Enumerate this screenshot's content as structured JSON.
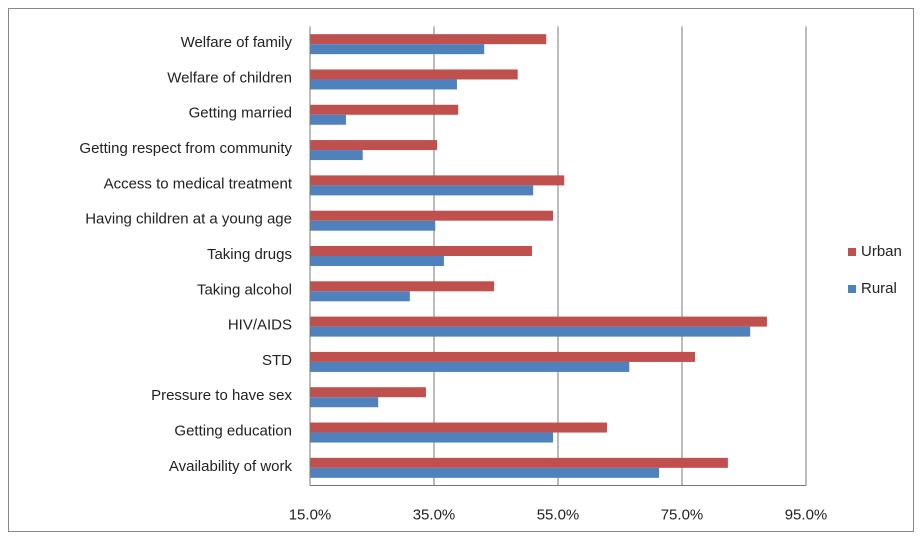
{
  "chart_data": {
    "type": "bar",
    "orientation": "horizontal",
    "categories": [
      "Welfare of family",
      "Welfare of children",
      "Getting married",
      "Getting respect from community",
      "Access to medical treatment",
      "Having children at a young age",
      "Taking drugs",
      "Taking alcohol",
      "HIV/AIDS",
      "STD",
      "Pressure to have sex",
      "Getting education",
      "Availability of work"
    ],
    "series": [
      {
        "name": "Urban",
        "color": "#c0504d",
        "values": [
          53.1,
          48.5,
          38.9,
          35.5,
          56.0,
          54.2,
          50.8,
          44.7,
          88.7,
          77.1,
          33.7,
          62.9,
          82.4
        ]
      },
      {
        "name": "Rural",
        "color": "#4f81bd",
        "values": [
          43.1,
          38.7,
          20.8,
          23.5,
          51.0,
          35.2,
          36.6,
          31.1,
          86.0,
          66.5,
          26.0,
          54.2,
          71.3
        ]
      }
    ],
    "xlim": [
      15,
      95
    ],
    "xticks": [
      {
        "value": 15,
        "label": "15.0%"
      },
      {
        "value": 35,
        "label": "35.0%"
      },
      {
        "value": 55,
        "label": "55.0%"
      },
      {
        "value": 75,
        "label": "75.0%"
      },
      {
        "value": 95,
        "label": "95.0%"
      }
    ],
    "grid": true,
    "legend": "right"
  }
}
